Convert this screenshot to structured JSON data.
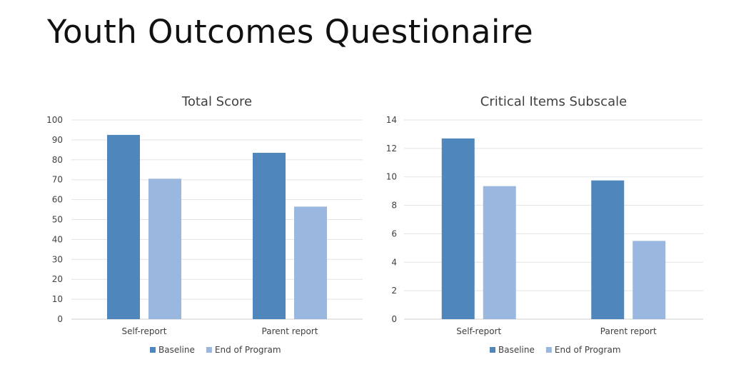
{
  "slide": {
    "title": "Youth Outcomes Questionaire"
  },
  "colors": {
    "baseline": "#4F86BC",
    "end_of_program": "#9AB8DF"
  },
  "chart_data": [
    {
      "type": "bar",
      "title": "Total Score",
      "categories": [
        "Self-report",
        "Parent report"
      ],
      "series": [
        {
          "name": "Baseline",
          "values": [
            92.5,
            83.5
          ]
        },
        {
          "name": "End of Program",
          "values": [
            70.5,
            56.5
          ]
        }
      ],
      "ylim": [
        0,
        100
      ],
      "yticks": [
        0,
        10,
        20,
        30,
        40,
        50,
        60,
        70,
        80,
        90,
        100
      ],
      "grid": true,
      "legend": "bottom"
    },
    {
      "type": "bar",
      "title": "Critical Items Subscale",
      "categories": [
        "Self-report",
        "Parent report"
      ],
      "series": [
        {
          "name": "Baseline",
          "values": [
            12.7,
            9.75
          ]
        },
        {
          "name": "End of Program",
          "values": [
            9.35,
            5.5
          ]
        }
      ],
      "ylim": [
        0,
        14
      ],
      "yticks": [
        0,
        2,
        4,
        6,
        8,
        10,
        12,
        14
      ],
      "grid": true,
      "legend": "bottom"
    }
  ]
}
